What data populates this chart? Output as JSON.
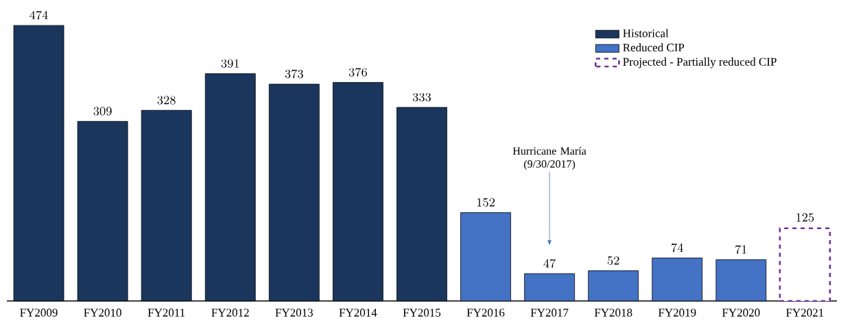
{
  "chart_data": {
    "type": "bar",
    "categories": [
      "FY2009",
      "FY2010",
      "FY2011",
      "FY2012",
      "FY2013",
      "FY2014",
      "FY2015",
      "FY2016",
      "FY2017",
      "FY2018",
      "FY2019",
      "FY2020",
      "FY2021"
    ],
    "series": [
      {
        "name": "Historical",
        "color": "#1b365d",
        "values": [
          474,
          309,
          328,
          391,
          373,
          376,
          333,
          null,
          null,
          null,
          null,
          null,
          null
        ]
      },
      {
        "name": "Reduced CIP",
        "color": "#4472c4",
        "values": [
          null,
          null,
          null,
          null,
          null,
          null,
          null,
          152,
          47,
          52,
          74,
          71,
          null
        ]
      },
      {
        "name": "Projected - Partially reduced CIP",
        "color": "#7030a0",
        "line_style": "dashed",
        "values": [
          null,
          null,
          null,
          null,
          null,
          null,
          null,
          null,
          null,
          null,
          null,
          null,
          125
        ]
      }
    ],
    "data_labels": true,
    "legend": "top right",
    "annotations": [
      "Hurricane María (9/30/2017)"
    ]
  }
}
